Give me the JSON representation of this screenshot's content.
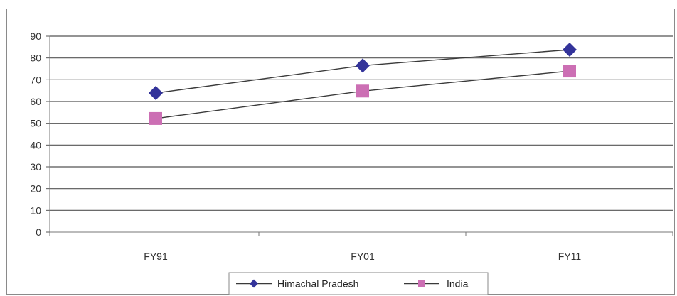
{
  "chart_data": {
    "type": "line",
    "title": "",
    "xlabel": "",
    "ylabel": "",
    "categories": [
      "FY91",
      "FY01",
      "FY11"
    ],
    "ylim": [
      0,
      90
    ],
    "yticks": [
      0,
      10,
      20,
      30,
      40,
      50,
      60,
      70,
      80,
      90
    ],
    "grid": "horizontal",
    "legend_position": "bottom",
    "series": [
      {
        "name": "Himachal Pradesh",
        "values": [
          63.9,
          76.5,
          83.8
        ],
        "color": "#33339a",
        "marker": "diamond"
      },
      {
        "name": "India",
        "values": [
          52.2,
          64.8,
          74.0
        ],
        "color": "#cc6fb4",
        "marker": "square"
      }
    ]
  }
}
